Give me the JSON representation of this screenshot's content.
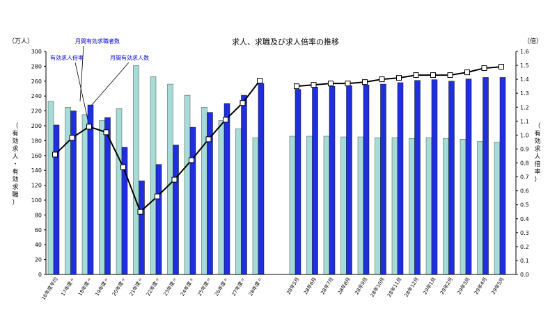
{
  "chart_data": {
    "type": "bar",
    "title": "求人、求職及び求人倍率の推移",
    "left_unit": "（万人）",
    "right_unit": "（倍）",
    "ylabel_left": "（有効求人・有効求職）",
    "ylabel_right": "（有効求人倍率）",
    "ylim_left": [
      0,
      300
    ],
    "ylim_right": [
      0,
      1.6
    ],
    "yticks_left": [
      "0",
      "20",
      "40",
      "60",
      "80",
      "100",
      "120",
      "140",
      "160",
      "180",
      "200",
      "220",
      "240",
      "260",
      "280",
      "300"
    ],
    "yticks_right": [
      "0.0",
      "0.1",
      "0.2",
      "0.3",
      "0.4",
      "0.5",
      "0.6",
      "0.7",
      "0.8",
      "0.9",
      "1.0",
      "1.1",
      "1.2",
      "1.3",
      "1.4",
      "1.5",
      "1.6"
    ],
    "categories": [
      "16年度平均",
      "17年度〃",
      "18年度〃",
      "19年度〃",
      "20年度〃",
      "21年度〃",
      "22年度〃",
      "23年度〃",
      "24年度〃",
      "25年度〃",
      "26年度〃",
      "27年度〃",
      "28年度〃",
      "28年5月",
      "28年6月",
      "28年7月",
      "28年8月",
      "28年9月",
      "28年10月",
      "28年11月",
      "28年12月",
      "29年1月",
      "29年2月",
      "29年3月",
      "29年4月",
      "29年5月"
    ],
    "series": [
      {
        "name": "月間有効求職者数",
        "color": "#a6dcd8",
        "values": [
          233,
          225,
          215,
          207,
          223,
          281,
          266,
          256,
          241,
          225,
          207,
          196,
          184,
          186,
          186,
          186,
          185,
          185,
          184,
          184,
          183,
          184,
          183,
          182,
          179,
          178
        ]
      },
      {
        "name": "月間有効求人数",
        "color": "#1f2fe0",
        "values": [
          201,
          220,
          228,
          211,
          171,
          126,
          148,
          174,
          198,
          218,
          230,
          241,
          257,
          249,
          252,
          253,
          254,
          255,
          256,
          258,
          261,
          262,
          260,
          263,
          265,
          265
        ]
      },
      {
        "name": "有効求人倍率",
        "color": "#000000",
        "axis": "right",
        "values": [
          0.86,
          0.98,
          1.06,
          1.02,
          0.77,
          0.45,
          0.56,
          0.68,
          0.82,
          0.97,
          1.11,
          1.23,
          1.39,
          1.35,
          1.36,
          1.37,
          1.37,
          1.38,
          1.4,
          1.41,
          1.43,
          1.43,
          1.43,
          1.45,
          1.48,
          1.49
        ]
      }
    ],
    "annotations": [
      "月間有効求職者数",
      "有効求人倍率",
      "月間有効求人数"
    ],
    "grid": false,
    "legend": "annotations"
  }
}
